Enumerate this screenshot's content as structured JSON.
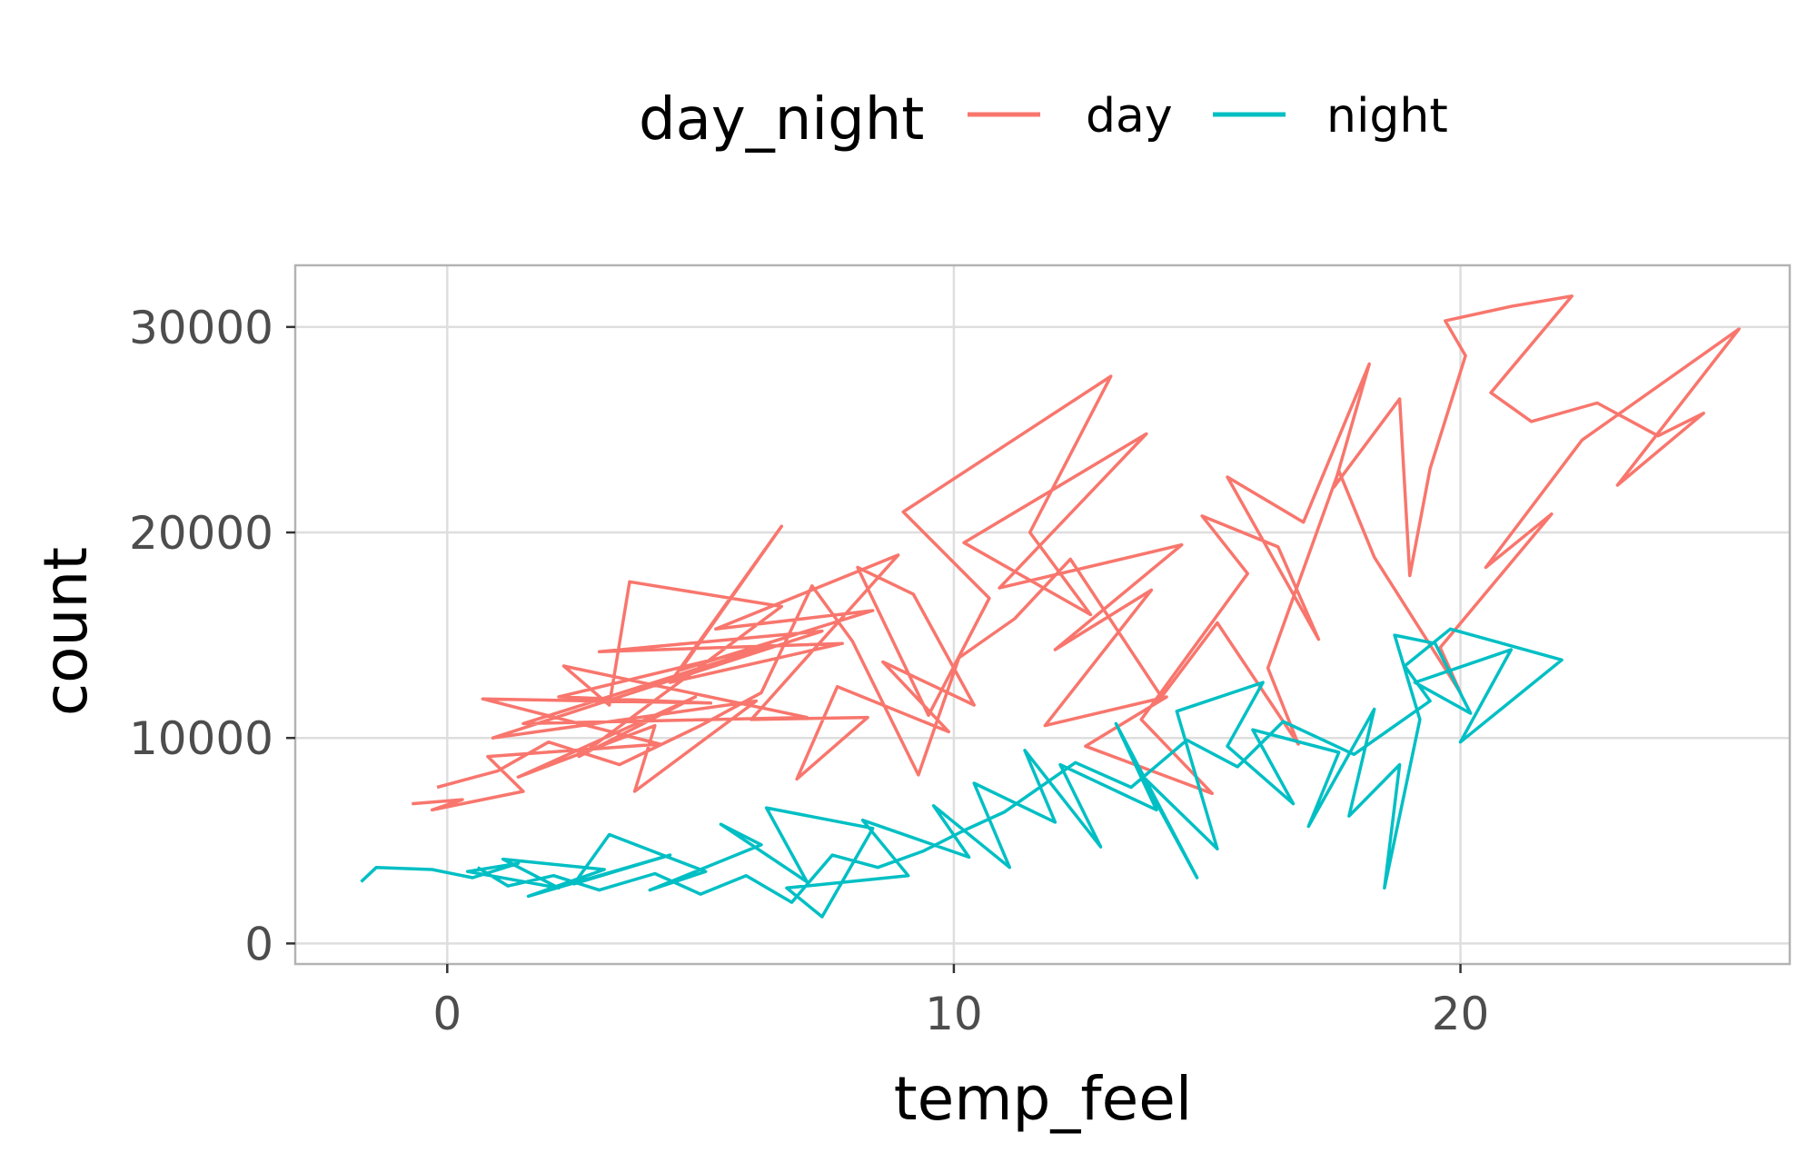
{
  "chart_data": {
    "type": "line",
    "xlabel": "temp_feel",
    "ylabel": "count",
    "xlim": [
      -3,
      26.5
    ],
    "ylim": [
      -1000,
      33000
    ],
    "x_ticks": [
      0,
      10,
      20
    ],
    "x_tick_labels": [
      "0",
      "10",
      "20"
    ],
    "y_ticks": [
      0,
      10000,
      20000,
      30000
    ],
    "y_tick_labels": [
      "0",
      "10000",
      "20000",
      "30000"
    ],
    "grid": true,
    "legend": {
      "title": "day_night",
      "position": "top"
    },
    "series": [
      {
        "name": "day",
        "color": "#F8766D",
        "points": [
          [
            -0.7,
            6800
          ],
          [
            0.3,
            7000
          ],
          [
            -0.3,
            6500
          ],
          [
            1.5,
            7400
          ],
          [
            0.8,
            9100
          ],
          [
            4.2,
            9700
          ],
          [
            0.7,
            11900
          ],
          [
            5.2,
            11700
          ],
          [
            2.2,
            12000
          ],
          [
            6.4,
            14500
          ],
          [
            1.5,
            10700
          ],
          [
            7.1,
            11000
          ],
          [
            2.3,
            13500
          ],
          [
            3.2,
            11600
          ],
          [
            3.6,
            17600
          ],
          [
            6.6,
            16400
          ],
          [
            2.6,
            9100
          ],
          [
            4.9,
            12000
          ],
          [
            1.4,
            8100
          ],
          [
            4.1,
            10600
          ],
          [
            3.7,
            7400
          ],
          [
            6.1,
            11800
          ],
          [
            0.9,
            10000
          ],
          [
            7.4,
            15200
          ],
          [
            3.0,
            14200
          ],
          [
            7.8,
            14600
          ],
          [
            4.4,
            12700
          ],
          [
            6.6,
            20300
          ],
          [
            4.6,
            13300
          ],
          [
            8.4,
            16200
          ],
          [
            5.3,
            15300
          ],
          [
            8.9,
            18900
          ],
          [
            6.0,
            10900
          ],
          [
            8.3,
            11000
          ],
          [
            6.9,
            8000
          ],
          [
            7.7,
            12500
          ],
          [
            9.9,
            10300
          ],
          [
            8.6,
            13700
          ],
          [
            10.4,
            11600
          ],
          [
            9.2,
            17000
          ],
          [
            8.1,
            18300
          ],
          [
            9.5,
            11100
          ],
          [
            10.7,
            16800
          ],
          [
            9.0,
            21000
          ],
          [
            13.1,
            27600
          ],
          [
            11.5,
            20000
          ],
          [
            12.7,
            16000
          ],
          [
            10.2,
            19500
          ],
          [
            13.8,
            24800
          ],
          [
            10.9,
            17300
          ],
          [
            14.5,
            19400
          ],
          [
            12.0,
            14300
          ],
          [
            13.9,
            17200
          ],
          [
            11.8,
            10600
          ],
          [
            14.2,
            12000
          ],
          [
            12.6,
            9600
          ],
          [
            15.1,
            7300
          ],
          [
            13.7,
            10900
          ],
          [
            15.8,
            18000
          ],
          [
            14.9,
            20800
          ],
          [
            16.4,
            19300
          ],
          [
            17.2,
            14800
          ],
          [
            15.4,
            22700
          ],
          [
            16.9,
            20500
          ],
          [
            18.2,
            28200
          ],
          [
            17.5,
            22200
          ],
          [
            18.8,
            26500
          ],
          [
            19.0,
            17900
          ],
          [
            19.4,
            23100
          ],
          [
            20.1,
            28600
          ],
          [
            19.7,
            30300
          ],
          [
            21.0,
            31000
          ],
          [
            22.2,
            31500
          ],
          [
            20.6,
            26800
          ],
          [
            21.4,
            25400
          ],
          [
            22.7,
            26300
          ],
          [
            23.9,
            24700
          ],
          [
            24.8,
            25800
          ],
          [
            23.1,
            22300
          ],
          [
            25.5,
            29900
          ],
          [
            22.4,
            24500
          ],
          [
            20.5,
            18300
          ],
          [
            21.8,
            20900
          ],
          [
            19.6,
            14400
          ],
          [
            20.0,
            12200
          ],
          [
            18.3,
            18800
          ],
          [
            17.6,
            23000
          ],
          [
            16.2,
            13400
          ],
          [
            16.8,
            9700
          ],
          [
            15.2,
            15600
          ],
          [
            14.1,
            12000
          ],
          [
            12.3,
            18700
          ],
          [
            11.2,
            15800
          ],
          [
            10.1,
            13900
          ],
          [
            9.3,
            8200
          ],
          [
            8.0,
            14700
          ],
          [
            7.2,
            17400
          ],
          [
            6.2,
            12200
          ],
          [
            5.0,
            10600
          ],
          [
            3.4,
            8700
          ],
          [
            2.0,
            9800
          ],
          [
            1.0,
            8400
          ],
          [
            -0.2,
            7600
          ]
        ]
      },
      {
        "name": "night",
        "color": "#00BFC4",
        "points": [
          [
            -1.7,
            3000
          ],
          [
            -1.4,
            3700
          ],
          [
            -0.3,
            3600
          ],
          [
            0.5,
            3200
          ],
          [
            1.4,
            3900
          ],
          [
            0.4,
            3500
          ],
          [
            2.2,
            2700
          ],
          [
            1.1,
            4100
          ],
          [
            3.1,
            3600
          ],
          [
            1.6,
            2300
          ],
          [
            4.4,
            4300
          ],
          [
            2.5,
            2900
          ],
          [
            3.2,
            5300
          ],
          [
            5.1,
            3500
          ],
          [
            4.0,
            2600
          ],
          [
            6.2,
            4800
          ],
          [
            5.4,
            5800
          ],
          [
            7.1,
            3000
          ],
          [
            6.3,
            6600
          ],
          [
            8.4,
            5600
          ],
          [
            7.4,
            1300
          ],
          [
            6.7,
            2700
          ],
          [
            9.1,
            3300
          ],
          [
            8.2,
            6000
          ],
          [
            10.3,
            4200
          ],
          [
            9.6,
            6700
          ],
          [
            11.1,
            3700
          ],
          [
            10.4,
            7800
          ],
          [
            12.0,
            5900
          ],
          [
            11.4,
            9400
          ],
          [
            12.9,
            4700
          ],
          [
            12.1,
            8700
          ],
          [
            14.0,
            6500
          ],
          [
            13.2,
            10700
          ],
          [
            14.8,
            3200
          ],
          [
            13.7,
            8200
          ],
          [
            15.2,
            4600
          ],
          [
            14.4,
            11300
          ],
          [
            16.1,
            12700
          ],
          [
            15.4,
            9600
          ],
          [
            16.7,
            6800
          ],
          [
            15.9,
            10400
          ],
          [
            17.6,
            9300
          ],
          [
            17.0,
            5700
          ],
          [
            18.3,
            11400
          ],
          [
            17.8,
            6200
          ],
          [
            18.8,
            8700
          ],
          [
            18.5,
            2700
          ],
          [
            19.2,
            10900
          ],
          [
            18.7,
            15000
          ],
          [
            19.5,
            14600
          ],
          [
            20.2,
            11200
          ],
          [
            19.1,
            12700
          ],
          [
            21.0,
            14300
          ],
          [
            20.0,
            9800
          ],
          [
            22.0,
            13800
          ],
          [
            19.8,
            15300
          ],
          [
            18.9,
            13500
          ],
          [
            19.4,
            11800
          ],
          [
            17.9,
            9200
          ],
          [
            16.5,
            10800
          ],
          [
            15.6,
            8600
          ],
          [
            14.6,
            9900
          ],
          [
            13.5,
            7600
          ],
          [
            12.4,
            8800
          ],
          [
            11.0,
            6400
          ],
          [
            10.2,
            5500
          ],
          [
            9.4,
            4500
          ],
          [
            8.5,
            3700
          ],
          [
            7.6,
            4300
          ],
          [
            6.8,
            2000
          ],
          [
            5.9,
            3300
          ],
          [
            5.0,
            2400
          ],
          [
            4.1,
            3400
          ],
          [
            3.0,
            2600
          ],
          [
            2.1,
            3300
          ],
          [
            1.2,
            2800
          ],
          [
            0.6,
            3700
          ]
        ]
      }
    ]
  }
}
